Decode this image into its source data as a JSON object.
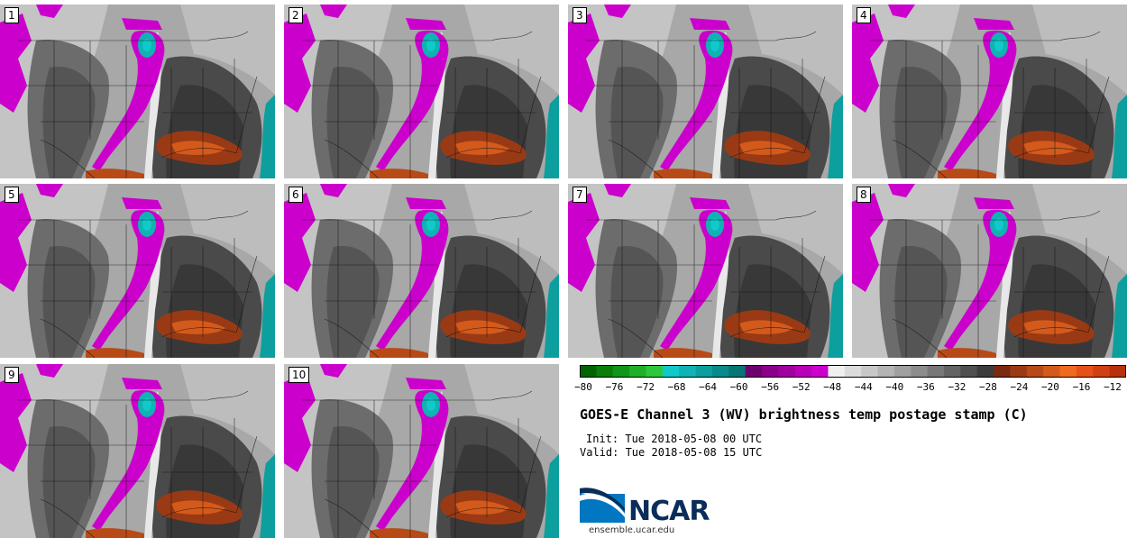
{
  "panels": [
    {
      "label": "1"
    },
    {
      "label": "2"
    },
    {
      "label": "3"
    },
    {
      "label": "4"
    },
    {
      "label": "5"
    },
    {
      "label": "6"
    },
    {
      "label": "7"
    },
    {
      "label": "8"
    },
    {
      "label": "9"
    },
    {
      "label": "10"
    }
  ],
  "colorbar": {
    "ticks": [
      "−80",
      "−76",
      "−72",
      "−68",
      "−64",
      "−60",
      "−56",
      "−52",
      "−48",
      "−44",
      "−40",
      "−36",
      "−32",
      "−28",
      "−24",
      "−20",
      "−16",
      "−12"
    ],
    "colors": [
      "#006400",
      "#0a7d0a",
      "#12961a",
      "#1fb02a",
      "#2cc73a",
      "#11c9c9",
      "#0fb3b3",
      "#0d9e9e",
      "#0a8a8a",
      "#087575",
      "#6e006e",
      "#8a008a",
      "#a000a0",
      "#b800b8",
      "#cc00cc",
      "#f0f0f0",
      "#dcdcdc",
      "#c8c8c8",
      "#b4b4b4",
      "#a0a0a0",
      "#8c8c8c",
      "#787878",
      "#646464",
      "#505050",
      "#3c3c3c",
      "#7a2a10",
      "#9a3a14",
      "#b84a18",
      "#d45a1c",
      "#ee6a1e",
      "#e8501a",
      "#d04012",
      "#b8300c"
    ]
  },
  "title": "GOES-E Channel 3 (WV) brightness temp postage stamp (C)",
  "init": "Init: Tue 2018-05-08 00 UTC",
  "valid": "Valid: Tue 2018-05-08 15 UTC",
  "logo": {
    "text": "NCAR",
    "url": "ensemble.ucar.edu"
  }
}
